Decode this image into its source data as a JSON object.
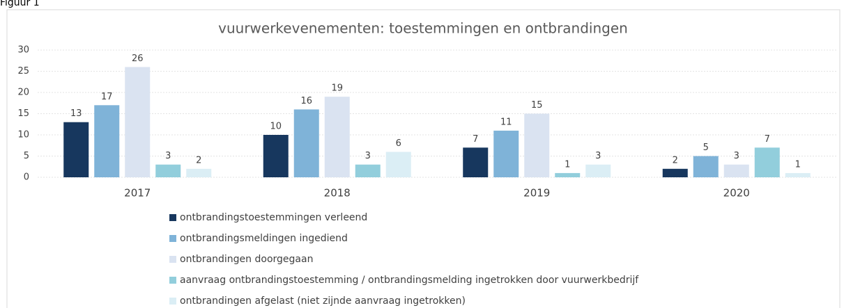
{
  "figure_label": "Figuur 1",
  "chart_data": {
    "type": "bar",
    "title": "vuurwerkevenementen: toestemmingen en ontbrandingen",
    "categories": [
      "2017",
      "2018",
      "2019",
      "2020"
    ],
    "series": [
      {
        "name": "ontbrandingstoestemmingen verleend",
        "color": "#17375e",
        "values": [
          13,
          10,
          7,
          2
        ]
      },
      {
        "name": "ontbrandingsmeldingen ingediend",
        "color": "#7fb3d8",
        "values": [
          17,
          16,
          11,
          5
        ]
      },
      {
        "name": "ontbrandingen doorgegaan",
        "color": "#dae3f1",
        "values": [
          26,
          19,
          15,
          3
        ]
      },
      {
        "name": "aanvraag ontbrandingstoestemming / ontbrandingsmelding ingetrokken door vuurwerkbedrijf",
        "color": "#92cedc",
        "values": [
          3,
          3,
          1,
          7
        ]
      },
      {
        "name": "ontbrandingen afgelast (niet zijnde aanvraag ingetrokken)",
        "color": "#dbeef5",
        "values": [
          2,
          6,
          3,
          1
        ]
      }
    ],
    "ylim": [
      0,
      30
    ],
    "yticks": [
      0,
      5,
      10,
      15,
      20,
      25,
      30
    ],
    "grid": true,
    "legend": "bottom"
  }
}
